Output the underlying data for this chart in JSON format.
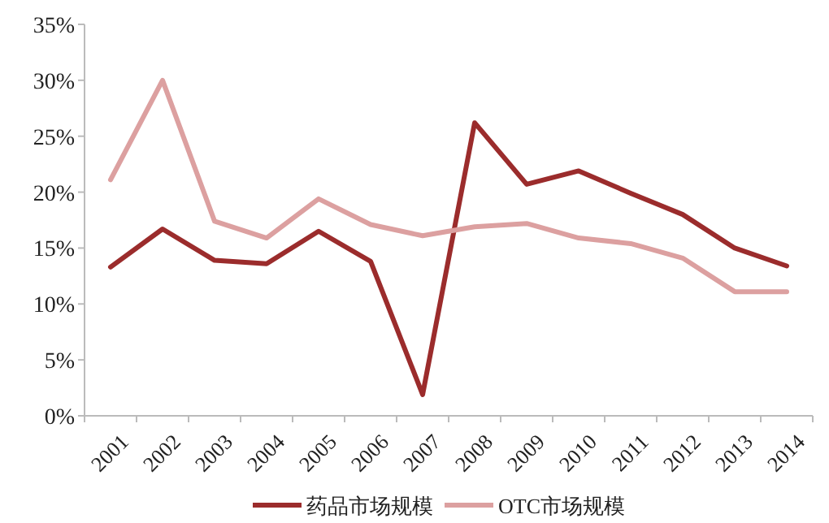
{
  "chart_data": {
    "type": "line",
    "categories": [
      "2001",
      "2002",
      "2003",
      "2004",
      "2005",
      "2006",
      "2007",
      "2008",
      "2009",
      "2010",
      "2011",
      "2012",
      "2013",
      "2014"
    ],
    "series": [
      {
        "name": "药品市场规模",
        "color": "#9b2c2c",
        "values": [
          13.3,
          16.7,
          13.9,
          13.6,
          16.5,
          13.8,
          1.9,
          26.2,
          20.7,
          21.9,
          19.9,
          18.0,
          15.0,
          13.4
        ]
      },
      {
        "name": "OTC市场规模",
        "color": "#dca0a0",
        "values": [
          21.1,
          30.0,
          17.4,
          15.9,
          19.4,
          17.1,
          16.1,
          16.9,
          17.2,
          15.9,
          15.4,
          14.1,
          11.1,
          11.1
        ]
      }
    ],
    "ylim": [
      0,
      35
    ],
    "yticks": [
      {
        "value": 0,
        "label": "0%"
      },
      {
        "value": 5,
        "label": "5%"
      },
      {
        "value": 10,
        "label": "10%"
      },
      {
        "value": 15,
        "label": "15%"
      },
      {
        "value": 20,
        "label": "20%"
      },
      {
        "value": 25,
        "label": "25%"
      },
      {
        "value": 30,
        "label": "30%"
      },
      {
        "value": 35,
        "label": "35%"
      }
    ],
    "grid": false,
    "legend": "bottom",
    "marker": "none",
    "line_style": "solid"
  }
}
